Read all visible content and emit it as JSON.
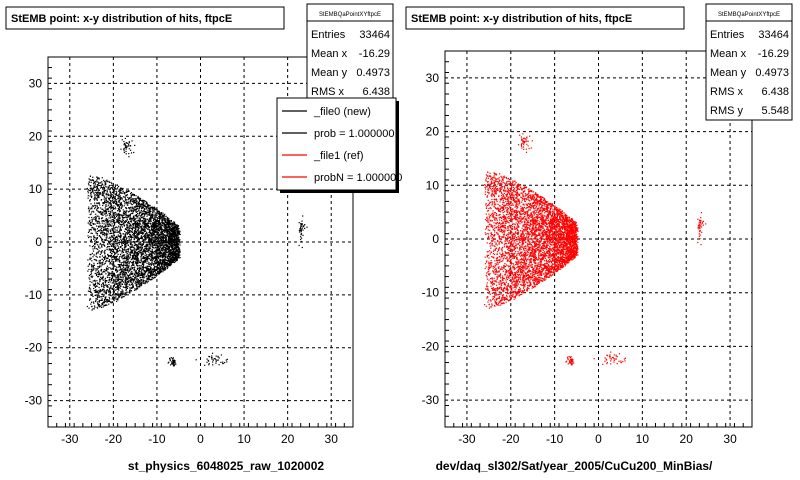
{
  "footer_text": "",
  "chart_data": [
    {
      "type": "scatter",
      "title": "StEMB point: x-y distribution of hits, ftpcE",
      "xlabel": "st_physics_6048025_raw_1020002",
      "ylabel": "",
      "xlim": [
        -35,
        35
      ],
      "ylim": [
        -35,
        35
      ],
      "grid": true,
      "x_ticks": [
        -30,
        -20,
        -10,
        0,
        10,
        20,
        30
      ],
      "y_ticks": [
        -30,
        -20,
        -10,
        0,
        10,
        20,
        30
      ],
      "point_color": "#000000",
      "stats": {
        "name": "StEMBQaPointXYftpcE",
        "rows": [
          {
            "label": "Entries",
            "value": "33464"
          },
          {
            "label": "Mean x",
            "value": "-16.29"
          },
          {
            "label": "Mean y",
            "value": "0.4973"
          },
          {
            "label": "RMS x",
            "value": "6.438"
          }
        ]
      },
      "legend": {
        "placement": "top-right",
        "entries": [
          {
            "label": "_file0 (new)",
            "color": "#000000"
          },
          {
            "label": "prob = 1.000000",
            "color": "#000000"
          },
          {
            "label": "_file1 (ref)",
            "color": "#ff0000"
          },
          {
            "label": "probN = 1.000000",
            "color": "#ff0000"
          }
        ]
      },
      "clusters": [
        {
          "shape": "wedge",
          "apex": [
            -26,
            0
          ],
          "right_x": -5,
          "half_height_at_apex": 13,
          "half_height_at_right": 3
        },
        {
          "shape": "blob",
          "center": [
            -17,
            18
          ],
          "spread": [
            0.6,
            0.7
          ]
        },
        {
          "shape": "blob",
          "center": [
            23,
            2.5
          ],
          "spread": [
            0.4,
            1.2
          ]
        },
        {
          "shape": "blob",
          "center": [
            3.5,
            -22.3
          ],
          "spread": [
            1.5,
            0.5
          ]
        },
        {
          "shape": "blob",
          "center": [
            -6.5,
            -22.5
          ],
          "spread": [
            0.4,
            0.4
          ]
        }
      ]
    },
    {
      "type": "scatter",
      "title": "StEMB point: x-y distribution of hits, ftpcE",
      "xlabel": "dev/daq_sl302/Sat/year_2005/CuCu200_MinBias/",
      "ylabel": "",
      "xlim": [
        -35,
        35
      ],
      "ylim": [
        -35,
        35
      ],
      "grid": true,
      "x_ticks": [
        -30,
        -20,
        -10,
        0,
        10,
        20,
        30
      ],
      "y_ticks": [
        -30,
        -20,
        -10,
        0,
        10,
        20,
        30
      ],
      "point_color": "#ff0000",
      "stats": {
        "name": "StEMBQaPointXYftpcE",
        "rows": [
          {
            "label": "Entries",
            "value": "33464"
          },
          {
            "label": "Mean x",
            "value": "-16.29"
          },
          {
            "label": "Mean y",
            "value": "0.4973"
          },
          {
            "label": "RMS x",
            "value": "6.438"
          },
          {
            "label": "RMS y",
            "value": "5.548"
          }
        ]
      },
      "clusters": [
        {
          "shape": "wedge",
          "apex": [
            -26,
            0
          ],
          "right_x": -5,
          "half_height_at_apex": 13,
          "half_height_at_right": 3
        },
        {
          "shape": "blob",
          "center": [
            -17,
            18
          ],
          "spread": [
            0.6,
            0.7
          ]
        },
        {
          "shape": "blob",
          "center": [
            23,
            2.5
          ],
          "spread": [
            0.4,
            1.2
          ]
        },
        {
          "shape": "blob",
          "center": [
            3.5,
            -22.3
          ],
          "spread": [
            1.5,
            0.5
          ]
        },
        {
          "shape": "blob",
          "center": [
            -6.5,
            -22.5
          ],
          "spread": [
            0.4,
            0.4
          ]
        }
      ]
    }
  ]
}
